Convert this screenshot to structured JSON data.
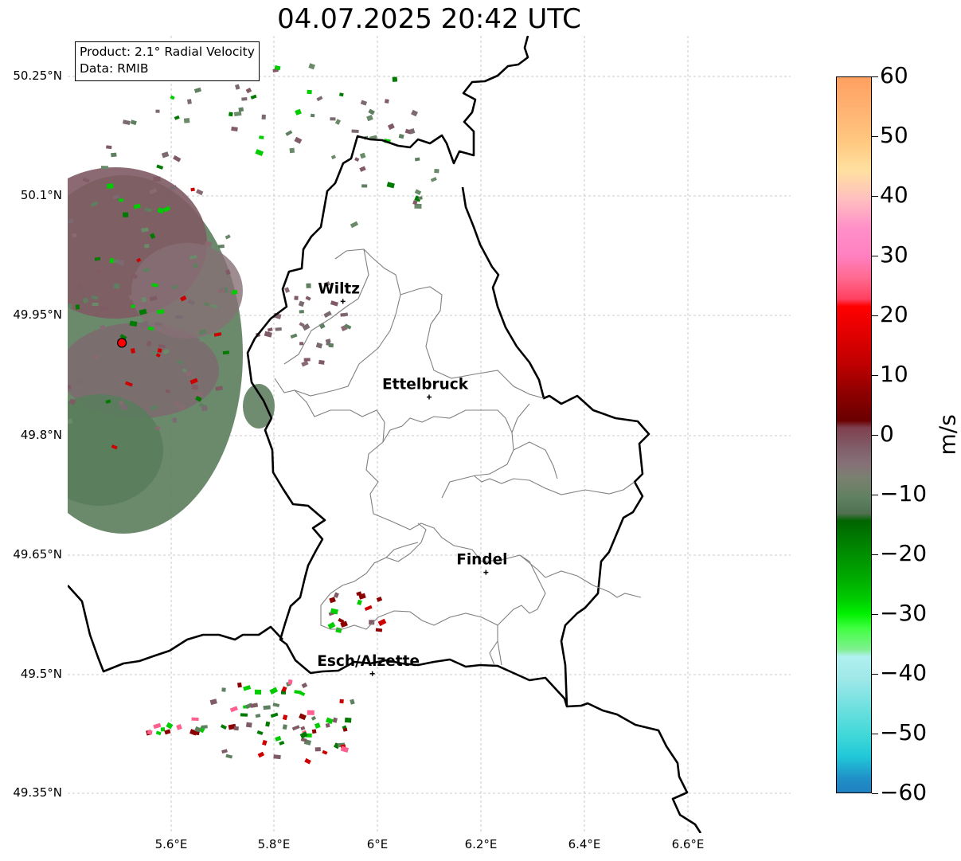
{
  "title": "04.07.2025 20:42 UTC",
  "info": {
    "product": "Product: 2.1° Radial Velocity",
    "data": "Data: RMIB"
  },
  "lat_ticks": [
    "50.25°N",
    "50.1°N",
    "49.95°N",
    "49.8°N",
    "49.65°N",
    "49.5°N",
    "49.35°N"
  ],
  "lon_ticks": [
    "5.6°E",
    "5.8°E",
    "6°E",
    "6.2°E",
    "6.4°E",
    "6.6°E"
  ],
  "colorbar": {
    "label": "m/s",
    "ticks": [
      "60",
      "50",
      "40",
      "30",
      "20",
      "10",
      "0",
      "−10",
      "−20",
      "−30",
      "−40",
      "−50",
      "−60"
    ],
    "range": [
      -60,
      60
    ]
  },
  "cities": [
    {
      "name": "Wiltz",
      "lon": 5.933,
      "lat": 49.967
    },
    {
      "name": "Ettelbruck",
      "lon": 6.1,
      "lat": 49.847
    },
    {
      "name": "Findel",
      "lon": 6.21,
      "lat": 49.627
    },
    {
      "name": "Esch/Alzette",
      "lon": 5.99,
      "lat": 49.5
    }
  ],
  "radar_site": {
    "lon": 5.505,
    "lat": 49.915
  },
  "extent": {
    "lon": [
      5.4,
      6.8
    ],
    "lat": [
      49.3,
      50.3
    ]
  }
}
